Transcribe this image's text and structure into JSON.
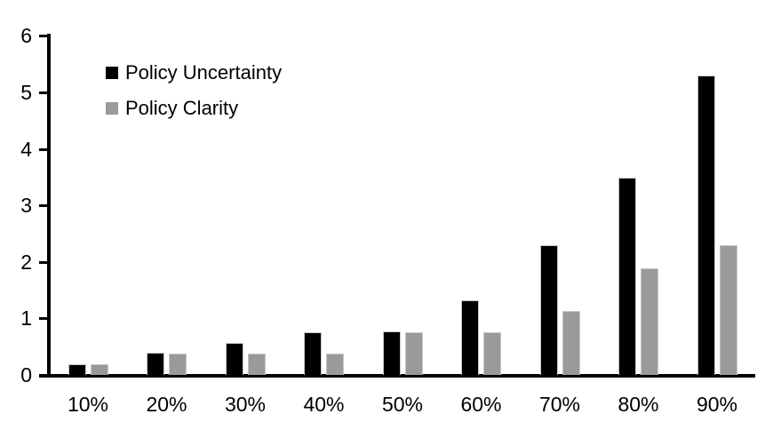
{
  "chart_data": {
    "type": "bar",
    "title": "",
    "xlabel": "",
    "ylabel": "",
    "categories": [
      "10%",
      "20%",
      "30%",
      "40%",
      "50%",
      "60%",
      "70%",
      "80%",
      "90%"
    ],
    "series": [
      {
        "name": "Policy Uncertainty",
        "color": "#000000",
        "values": [
          0.2,
          0.4,
          0.57,
          0.76,
          0.78,
          1.33,
          2.3,
          3.5,
          5.3
        ]
      },
      {
        "name": "Policy Clarity",
        "color": "#9a9a9a",
        "values": [
          0.2,
          0.38,
          0.38,
          0.38,
          0.77,
          0.77,
          1.14,
          1.9,
          2.3
        ]
      }
    ],
    "y_axis": {
      "min": 0,
      "max": 6,
      "tick_interval": 1,
      "ticks": [
        0,
        1,
        2,
        3,
        4,
        5,
        6
      ]
    },
    "grid": false,
    "legend_position": "top-left",
    "background_color": "#ffffff",
    "axis_color": "#000000"
  }
}
